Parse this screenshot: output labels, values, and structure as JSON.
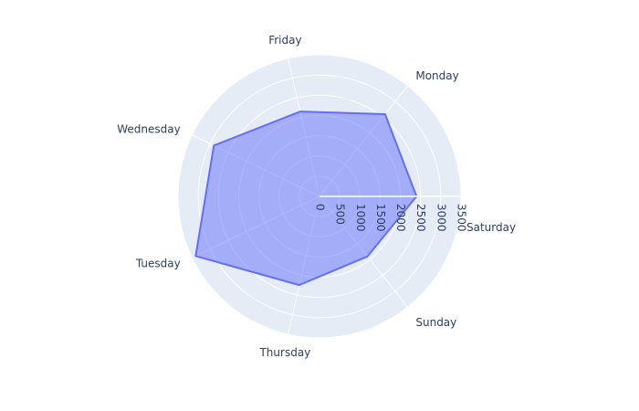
{
  "chart_data": {
    "type": "radar",
    "title": "",
    "categories": [
      "Saturday",
      "Monday",
      "Friday",
      "Wednesday",
      "Tuesday",
      "Thursday",
      "Sunday"
    ],
    "angles_deg": [
      0,
      51.43,
      102.86,
      154.29,
      205.71,
      257.14,
      308.57
    ],
    "series": [
      {
        "values": [
          2400,
          2600,
          2150,
          2900,
          3400,
          2250,
          1900
        ],
        "fill_color": "rgba(99,110,250,0.5)",
        "line_color": "#636efa"
      }
    ],
    "radial_axis": {
      "range": [
        0,
        3500
      ],
      "tick_values": [
        0,
        500,
        1000,
        1500,
        2000,
        2500,
        3000,
        3500
      ],
      "tick_labels": [
        "0",
        "500",
        "1000",
        "1500",
        "2000",
        "2500",
        "3000",
        "3500"
      ]
    },
    "polar_bg_color": "#e5ecf6",
    "grid_color": "#ffffff",
    "text_color": "#2a3f5f",
    "grid": true,
    "legend": "none"
  }
}
